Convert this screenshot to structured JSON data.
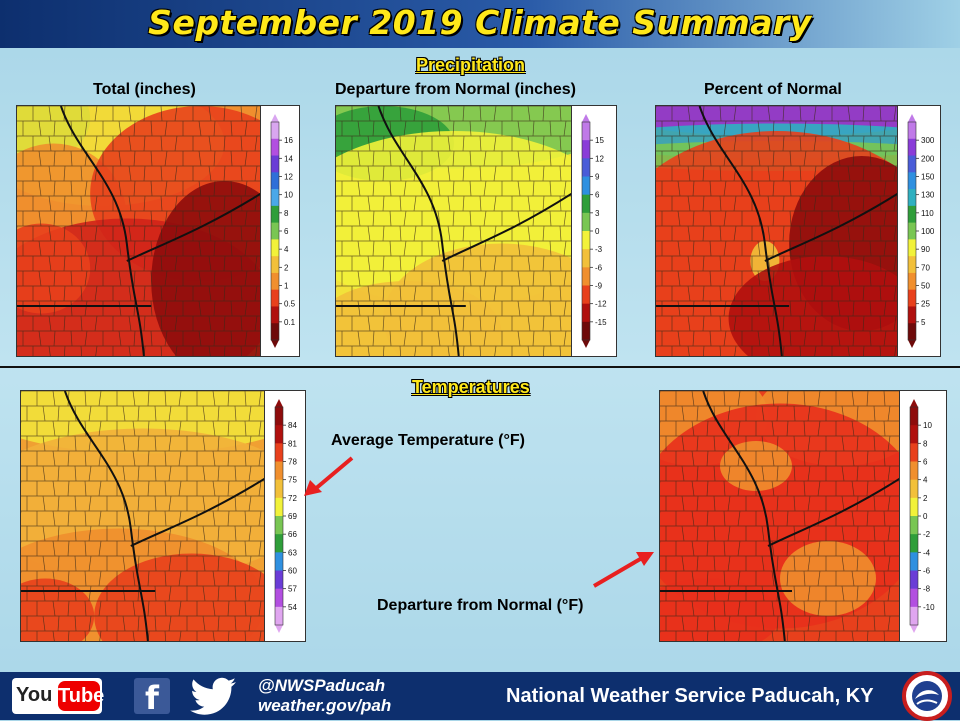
{
  "title": "September 2019 Climate Summary",
  "sections": {
    "precipitation": "Precipitation",
    "temperatures": "Temperatures"
  },
  "panels": {
    "precip_total": {
      "label": "Total (inches)",
      "legend_ticks": [
        "16",
        "14",
        "12",
        "10",
        "8",
        "6",
        "4",
        "2",
        "1",
        "0.5",
        "0.1"
      ],
      "legend_colors": [
        "#d9a6f0",
        "#b24fe0",
        "#6a3cd6",
        "#2f6fd8",
        "#4aa8e8",
        "#2f9e3a",
        "#79c653",
        "#f2f23a",
        "#f2c03a",
        "#f08f2e",
        "#e8401c",
        "#b0100e",
        "#6e0a0a"
      ]
    },
    "precip_departure": {
      "label": "Departure from Normal (inches)",
      "legend_ticks": [
        "15",
        "12",
        "9",
        "6",
        "3",
        "0",
        "-3",
        "-6",
        "-9",
        "-12",
        "-15"
      ],
      "legend_colors": [
        "#c07ae8",
        "#8a3cd8",
        "#4a5cd8",
        "#2f90e0",
        "#2f9e3a",
        "#79c653",
        "#f2f23a",
        "#f2c03a",
        "#f08f2e",
        "#e8401c",
        "#b0100e",
        "#6e0a0a"
      ]
    },
    "precip_percent": {
      "label": "Percent of Normal",
      "legend_ticks": [
        "300",
        "200",
        "150",
        "130",
        "110",
        "100",
        "90",
        "70",
        "50",
        "25",
        "5"
      ],
      "legend_colors": [
        "#c07ae8",
        "#8a3cd8",
        "#4a5cd8",
        "#2f90e0",
        "#2fb0c0",
        "#2f9e3a",
        "#79c653",
        "#f2f23a",
        "#f2c03a",
        "#f08f2e",
        "#e8401c",
        "#b0100e",
        "#6e0a0a"
      ]
    },
    "temp_average": {
      "annotation": "Average Temperature (°F)",
      "legend_ticks": [
        "84",
        "81",
        "78",
        "75",
        "72",
        "69",
        "66",
        "63",
        "60",
        "57",
        "54"
      ],
      "legend_colors": [
        "#8e0c0c",
        "#b0100e",
        "#e8401c",
        "#f08f2e",
        "#f2c03a",
        "#f2f23a",
        "#79c653",
        "#2f9e3a",
        "#2f90e0",
        "#6a3cd6",
        "#b24fe0",
        "#e0a6f0"
      ]
    },
    "temp_departure": {
      "annotation": "Departure from Normal (°F)",
      "legend_ticks": [
        "10",
        "8",
        "6",
        "4",
        "2",
        "0",
        "-2",
        "-4",
        "-6",
        "-8",
        "-10"
      ],
      "legend_colors": [
        "#8e0c0c",
        "#b0100e",
        "#e8401c",
        "#f08f2e",
        "#f2c03a",
        "#f2f23a",
        "#79c653",
        "#2f9e3a",
        "#2f90e0",
        "#6a3cd6",
        "#b24fe0",
        "#e0a6f0"
      ]
    }
  },
  "footer": {
    "youtube_you": "You",
    "youtube_tube": "Tube",
    "facebook_letter": "f",
    "twitter_handle": "@NWSPaducah",
    "website": "weather.gov/pah",
    "office_name": "National Weather Service Paducah, KY"
  },
  "icons": {
    "youtube": "youtube-icon",
    "facebook": "facebook-icon",
    "twitter": "twitter-icon",
    "nws_logo": "nws-logo-icon"
  },
  "colors": {
    "title_yellow": "#ffe81a",
    "banner_blue": "#0d2f6e",
    "arrow_red": "#e82020"
  }
}
